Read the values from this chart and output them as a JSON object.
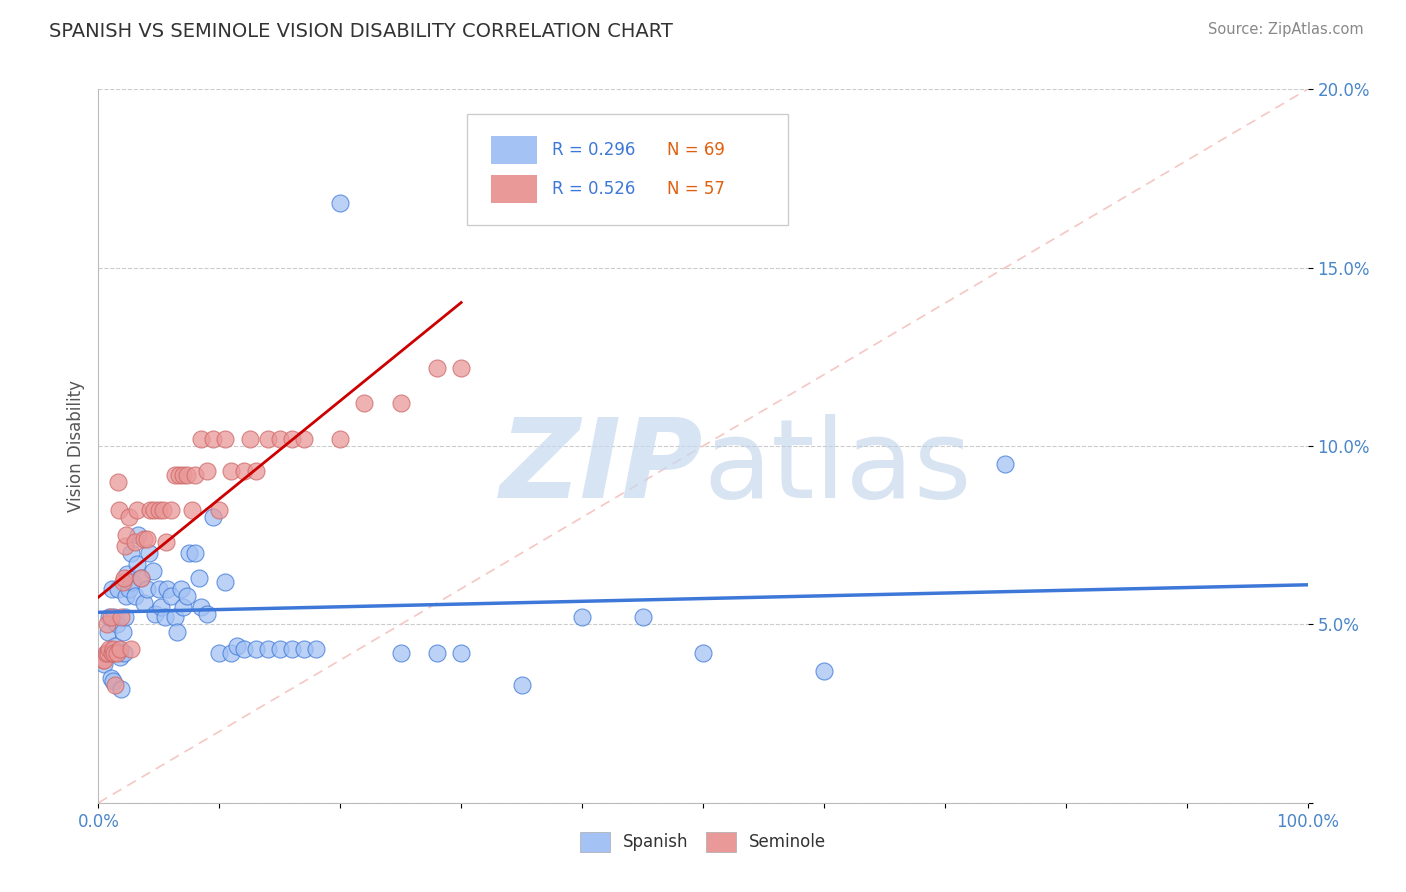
{
  "title": "SPANISH VS SEMINOLE VISION DISABILITY CORRELATION CHART",
  "source": "Source: ZipAtlas.com",
  "ylabel": "Vision Disability",
  "xlim": [
    0,
    1.0
  ],
  "ylim": [
    0,
    0.2
  ],
  "xtick_positions": [
    0.0,
    0.1,
    0.2,
    0.3,
    0.4,
    0.5,
    0.6,
    0.7,
    0.8,
    0.9,
    1.0
  ],
  "xtick_labels_shown": {
    "0.0": "0.0%",
    "1.0": "100.0%"
  },
  "yticks": [
    0.0,
    0.05,
    0.1,
    0.15,
    0.2
  ],
  "ytick_labels": [
    "",
    "5.0%",
    "10.0%",
    "15.0%",
    "20.0%"
  ],
  "blue_R": 0.296,
  "blue_N": 69,
  "pink_R": 0.526,
  "pink_N": 57,
  "blue_color": "#a4c2f4",
  "pink_color": "#ea9999",
  "blue_line_color": "#3d78d8",
  "pink_line_color": "#cc0000",
  "ref_line_color": "#f4c7c3",
  "legend_label_blue": "Spanish",
  "legend_label_pink": "Seminole",
  "blue_x": [
    0.005,
    0.007,
    0.008,
    0.009,
    0.01,
    0.01,
    0.011,
    0.012,
    0.013,
    0.014,
    0.015,
    0.016,
    0.017,
    0.018,
    0.019,
    0.02,
    0.021,
    0.022,
    0.023,
    0.024,
    0.025,
    0.027,
    0.028,
    0.03,
    0.032,
    0.033,
    0.035,
    0.038,
    0.04,
    0.042,
    0.045,
    0.047,
    0.05,
    0.052,
    0.055,
    0.057,
    0.06,
    0.063,
    0.065,
    0.068,
    0.07,
    0.073,
    0.075,
    0.08,
    0.083,
    0.085,
    0.09,
    0.095,
    0.1,
    0.105,
    0.11,
    0.115,
    0.12,
    0.13,
    0.14,
    0.15,
    0.16,
    0.17,
    0.18,
    0.2,
    0.25,
    0.28,
    0.3,
    0.35,
    0.4,
    0.45,
    0.5,
    0.6,
    0.75
  ],
  "blue_y": [
    0.039,
    0.042,
    0.048,
    0.052,
    0.042,
    0.035,
    0.06,
    0.034,
    0.052,
    0.044,
    0.05,
    0.06,
    0.042,
    0.041,
    0.032,
    0.048,
    0.042,
    0.052,
    0.058,
    0.064,
    0.06,
    0.07,
    0.062,
    0.058,
    0.067,
    0.075,
    0.063,
    0.056,
    0.06,
    0.07,
    0.065,
    0.053,
    0.06,
    0.055,
    0.052,
    0.06,
    0.058,
    0.052,
    0.048,
    0.06,
    0.055,
    0.058,
    0.07,
    0.07,
    0.063,
    0.055,
    0.053,
    0.08,
    0.042,
    0.062,
    0.042,
    0.044,
    0.043,
    0.043,
    0.043,
    0.043,
    0.043,
    0.043,
    0.043,
    0.168,
    0.042,
    0.042,
    0.042,
    0.033,
    0.052,
    0.052,
    0.042,
    0.037,
    0.095
  ],
  "pink_x": [
    0.004,
    0.005,
    0.006,
    0.007,
    0.008,
    0.009,
    0.01,
    0.011,
    0.012,
    0.013,
    0.014,
    0.015,
    0.016,
    0.017,
    0.018,
    0.019,
    0.02,
    0.021,
    0.022,
    0.023,
    0.025,
    0.027,
    0.03,
    0.032,
    0.035,
    0.038,
    0.04,
    0.043,
    0.046,
    0.05,
    0.053,
    0.056,
    0.06,
    0.063,
    0.067,
    0.07,
    0.073,
    0.077,
    0.08,
    0.085,
    0.09,
    0.095,
    0.1,
    0.105,
    0.11,
    0.12,
    0.125,
    0.13,
    0.14,
    0.15,
    0.16,
    0.17,
    0.2,
    0.22,
    0.25,
    0.28,
    0.3
  ],
  "pink_y": [
    0.04,
    0.04,
    0.042,
    0.05,
    0.042,
    0.043,
    0.052,
    0.042,
    0.043,
    0.042,
    0.033,
    0.042,
    0.09,
    0.082,
    0.043,
    0.052,
    0.062,
    0.063,
    0.072,
    0.075,
    0.08,
    0.043,
    0.073,
    0.082,
    0.063,
    0.074,
    0.074,
    0.082,
    0.082,
    0.082,
    0.082,
    0.073,
    0.082,
    0.092,
    0.092,
    0.092,
    0.092,
    0.082,
    0.092,
    0.102,
    0.093,
    0.102,
    0.082,
    0.102,
    0.093,
    0.093,
    0.102,
    0.093,
    0.102,
    0.102,
    0.102,
    0.102,
    0.102,
    0.112,
    0.112,
    0.122,
    0.122
  ]
}
